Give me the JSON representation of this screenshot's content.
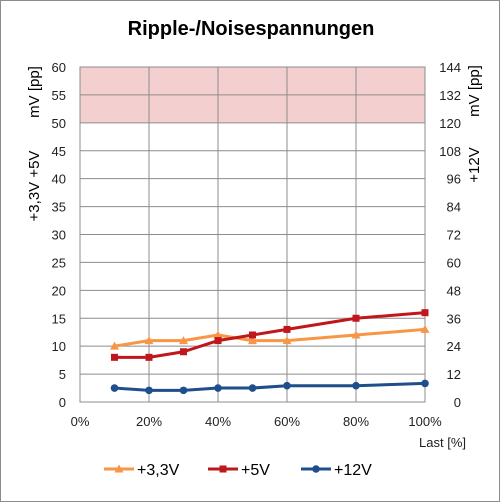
{
  "chart_data": {
    "type": "line",
    "title": "Ripple-/Noisespannungen",
    "xlabel": "Last [%]",
    "ylabel_left_top": "mV [pp]",
    "ylabel_left_bottom": "+3,3V  +5V",
    "ylabel_right_top": "mV [pp]",
    "ylabel_right_bottom": "+12V",
    "xlim": [
      0,
      100
    ],
    "ylim": [
      0,
      60
    ],
    "ylim_right": [
      0,
      144
    ],
    "x_ticks": [
      "0%",
      "20%",
      "40%",
      "60%",
      "80%",
      "100%"
    ],
    "y_ticks": [
      "0",
      "5",
      "10",
      "15",
      "20",
      "25",
      "30",
      "35",
      "40",
      "45",
      "50",
      "55",
      "60"
    ],
    "y2_ticks": [
      "0",
      "12",
      "24",
      "36",
      "48",
      "60",
      "72",
      "84",
      "96",
      "108",
      "120",
      "132",
      "144"
    ],
    "limit_band": {
      "from": 50,
      "to": 60,
      "color": "#f3d0cf"
    },
    "grid": true,
    "legend_position": "bottom",
    "series": [
      {
        "name": "+3,3V",
        "axis": "left",
        "color": "#f79646",
        "marker": "triangle",
        "x": [
          10,
          20,
          30,
          40,
          50,
          60,
          80,
          100
        ],
        "values": [
          10,
          11,
          11,
          12,
          11,
          11,
          12,
          13
        ]
      },
      {
        "name": "+5V",
        "axis": "left",
        "color": "#c0171c",
        "marker": "square",
        "x": [
          10,
          20,
          30,
          40,
          50,
          60,
          80,
          100
        ],
        "values": [
          8,
          8,
          9,
          11,
          12,
          13,
          15,
          16
        ]
      },
      {
        "name": "+12V",
        "axis": "right",
        "color": "#1f4e8c",
        "marker": "circle",
        "x": [
          10,
          20,
          30,
          40,
          50,
          60,
          80,
          100
        ],
        "values": [
          6,
          5,
          5,
          6,
          6,
          7,
          7,
          8
        ]
      }
    ]
  }
}
